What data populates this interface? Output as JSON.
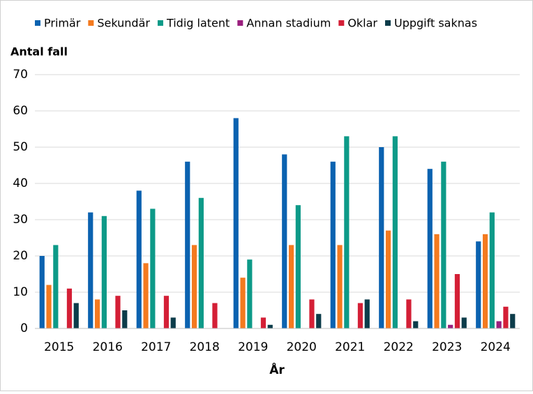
{
  "chart_data": {
    "type": "bar",
    "categories": [
      "2015",
      "2016",
      "2017",
      "2018",
      "2019",
      "2020",
      "2021",
      "2022",
      "2023",
      "2024"
    ],
    "series": [
      {
        "name": "Primär",
        "color": "#0b62b0",
        "values": [
          20,
          32,
          38,
          46,
          58,
          48,
          46,
          50,
          44,
          24
        ]
      },
      {
        "name": "Sekundär",
        "color": "#f47a1f",
        "values": [
          12,
          8,
          18,
          23,
          14,
          23,
          23,
          27,
          26,
          26
        ]
      },
      {
        "name": "Tidig latent",
        "color": "#0d9a88",
        "values": [
          23,
          31,
          33,
          36,
          19,
          34,
          53,
          53,
          46,
          32
        ]
      },
      {
        "name": "Annan stadium",
        "color": "#9a1f7e",
        "values": [
          0,
          0,
          0,
          0,
          0,
          0,
          0,
          0,
          1,
          2
        ]
      },
      {
        "name": "Oklar",
        "color": "#d41f36",
        "values": [
          11,
          9,
          9,
          7,
          3,
          8,
          7,
          8,
          15,
          6
        ]
      },
      {
        "name": "Uppgift saknas",
        "color": "#0c3c4a",
        "values": [
          7,
          5,
          3,
          0,
          1,
          4,
          8,
          2,
          3,
          4
        ]
      }
    ],
    "y_label": "Antal fall",
    "x_label": "År",
    "ylim": [
      0,
      70
    ],
    "yticks": [
      0,
      10,
      20,
      30,
      40,
      50,
      60,
      70
    ],
    "grid": true
  }
}
